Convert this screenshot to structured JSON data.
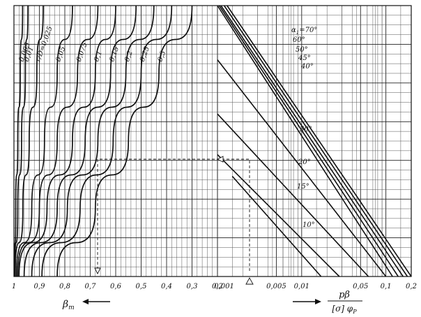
{
  "chart_data": [
    {
      "type": "line",
      "panel": "left",
      "x_ticks": [
        "1",
        "0,9",
        "0,8",
        "0,7",
        "0,6",
        "0,5",
        "0,4",
        "0,3",
        "0,2"
      ],
      "xlabel": "β",
      "xlabel_sub": "т",
      "xlabel_arrow": "left",
      "series_label_prefix": "r/D=",
      "series": [
        {
          "name": "0,005",
          "points": [
            [
              0.998,
              0.0
            ],
            [
              0.993,
              0.25
            ],
            [
              0.985,
              0.5
            ],
            [
              0.975,
              0.75
            ],
            [
              0.966,
              1.0
            ]
          ]
        },
        {
          "name": "0,01",
          "points": [
            [
              0.997,
              0.0
            ],
            [
              0.985,
              0.25
            ],
            [
              0.97,
              0.5
            ],
            [
              0.955,
              0.75
            ],
            [
              0.945,
              1.0
            ]
          ]
        },
        {
          "name": "0,025",
          "points": [
            [
              0.995,
              0.0
            ],
            [
              0.965,
              0.25
            ],
            [
              0.94,
              0.5
            ],
            [
              0.91,
              0.75
            ],
            [
              0.885,
              1.0
            ]
          ]
        },
        {
          "name": "0,05",
          "points": [
            [
              0.99,
              0.0
            ],
            [
              0.93,
              0.25
            ],
            [
              0.88,
              0.5
            ],
            [
              0.83,
              0.75
            ],
            [
              0.77,
              1.0
            ]
          ]
        },
        {
          "name": "0,075",
          "points": [
            [
              0.985,
              0.0
            ],
            [
              0.9,
              0.25
            ],
            [
              0.83,
              0.5
            ],
            [
              0.75,
              0.75
            ],
            [
              0.67,
              1.0
            ]
          ]
        },
        {
          "name": "0,1",
          "points": [
            [
              0.98,
              0.0
            ],
            [
              0.87,
              0.25
            ],
            [
              0.77,
              0.5
            ],
            [
              0.68,
              0.75
            ],
            [
              0.6,
              1.0
            ]
          ]
        },
        {
          "name": "0,15",
          "points": [
            [
              0.96,
              0.0
            ],
            [
              0.83,
              0.25
            ],
            [
              0.72,
              0.5
            ],
            [
              0.62,
              0.75
            ],
            [
              0.52,
              1.0
            ]
          ]
        },
        {
          "name": "0,2",
          "points": [
            [
              0.93,
              0.0
            ],
            [
              0.79,
              0.25
            ],
            [
              0.67,
              0.5
            ],
            [
              0.56,
              0.75
            ],
            [
              0.45,
              1.0
            ]
          ]
        },
        {
          "name": "0,25",
          "points": [
            [
              0.89,
              0.0
            ],
            [
              0.74,
              0.25
            ],
            [
              0.61,
              0.5
            ],
            [
              0.5,
              0.75
            ],
            [
              0.38,
              1.0
            ]
          ]
        },
        {
          "name": "0,3",
          "points": [
            [
              0.83,
              0.0
            ],
            [
              0.68,
              0.25
            ],
            [
              0.55,
              0.5
            ],
            [
              0.43,
              0.75
            ],
            [
              0.3,
              1.0
            ]
          ]
        }
      ]
    },
    {
      "type": "line",
      "panel": "right",
      "x_scale": "log",
      "x_ticks": [
        "0,001",
        "0,005",
        "0,01",
        "0,05",
        "0,1",
        "0,2"
      ],
      "xlabel_numerator": "pβ",
      "xlabel_denominator": "[σ] φ",
      "xlabel_denominator_sub": "P",
      "xlabel_arrow": "right",
      "series_label_prefix": "α",
      "series_label_sub": "1",
      "series": [
        {
          "name": "70°",
          "label": "=70°",
          "points": [
            [
              0.0013,
              1.0
            ],
            [
              0.2,
              0.0
            ]
          ]
        },
        {
          "name": "60°",
          "label": "60°",
          "points": [
            [
              0.0012,
              1.0
            ],
            [
              0.18,
              0.0
            ]
          ]
        },
        {
          "name": "50°",
          "label": "50°",
          "points": [
            [
              0.0011,
              1.0
            ],
            [
              0.16,
              0.0
            ]
          ]
        },
        {
          "name": "45°",
          "label": "45°",
          "points": [
            [
              0.00105,
              1.0
            ],
            [
              0.14,
              0.0
            ]
          ]
        },
        {
          "name": "40°",
          "label": "40°",
          "points": [
            [
              0.001,
              1.0
            ],
            [
              0.12,
              0.0
            ]
          ]
        },
        {
          "name": "30°",
          "label": "30°",
          "points": [
            [
              0.001,
              0.8
            ],
            [
              0.1,
              0.0
            ]
          ]
        },
        {
          "name": "20°",
          "label": "20°",
          "points": [
            [
              0.001,
              0.6
            ],
            [
              0.062,
              0.0
            ]
          ]
        },
        {
          "name": "15°",
          "label": "15°",
          "points": [
            [
              0.001,
              0.45
            ],
            [
              0.028,
              0.0
            ]
          ]
        },
        {
          "name": "10°",
          "label": "10°",
          "points": [
            [
              0.0015,
              0.37
            ],
            [
              0.017,
              0.0
            ]
          ]
        }
      ]
    }
  ]
}
